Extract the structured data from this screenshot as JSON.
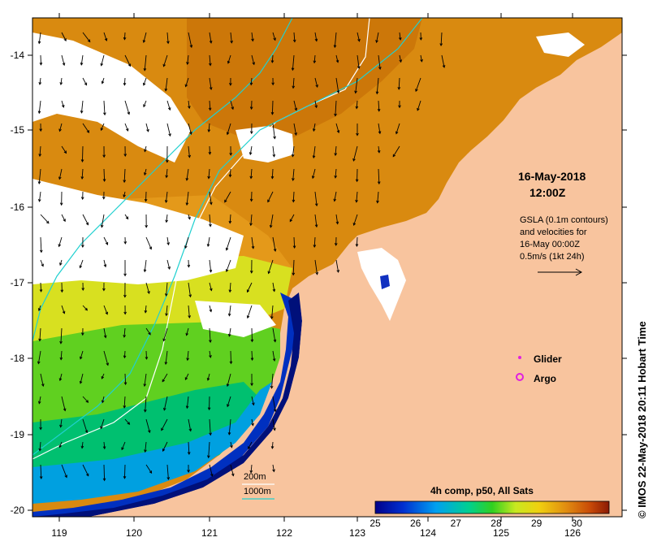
{
  "map": {
    "date": "16-May-2018",
    "time": "12:00Z",
    "legend_gsla": [
      "GSLA (0.1m contours)",
      "and velocities for",
      "16-May 00:00Z",
      "0.5m/s (1kt 24h)"
    ],
    "glider_label": "Glider",
    "argo_label": "Argo",
    "bathy_200": "200m",
    "bathy_1000": "1000m",
    "colorbar_title": "4h comp, p50, All Sats",
    "colorbar_ticks": [
      "25",
      "26",
      "27",
      "28",
      "29",
      "30"
    ],
    "colorbar_range": [
      25,
      30.8
    ],
    "x_ticks": [
      "119",
      "120",
      "121",
      "122",
      "123",
      "124",
      "125",
      "126"
    ],
    "y_ticks": [
      "-14",
      "-15",
      "-16",
      "-17",
      "-18",
      "-19",
      "-20"
    ],
    "credit": "© IMOS 22-May-2018 20:11 Hobart Time",
    "colors": {
      "land": "#f8c49e",
      "cloud": "#ffffff",
      "warm": "#d98a10",
      "glider": "#e020e0",
      "argo": "#e020e0",
      "contour_200": "#ffffff",
      "contour_1000": "#20d0d0"
    }
  }
}
